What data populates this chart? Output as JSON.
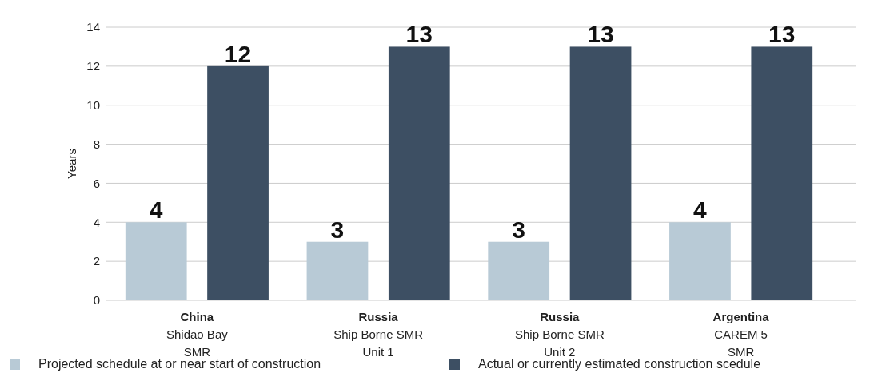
{
  "chart_data": {
    "type": "bar",
    "ylabel": "Years",
    "categories": [
      "China\nShidao Bay\nSMR",
      "Russia\nShip Borne SMR\nUnit 1",
      "Russia\nShip Borne SMR\nUnit 2",
      "Argentina\nCAREM 5\nSMR"
    ],
    "series": [
      {
        "name": "Projected schedule at or near start of construction",
        "color": "#b8cad6",
        "values": [
          4,
          3,
          3,
          4
        ]
      },
      {
        "name": "Actual or currently estimated construction scedule",
        "color": "#3d4f63",
        "values": [
          12,
          13,
          13,
          13
        ]
      }
    ],
    "ylim": [
      0,
      14
    ],
    "yticks": [
      0,
      2,
      4,
      6,
      8,
      10,
      12,
      14
    ],
    "grid": "y",
    "legend": "bottom",
    "data_labels": true
  }
}
